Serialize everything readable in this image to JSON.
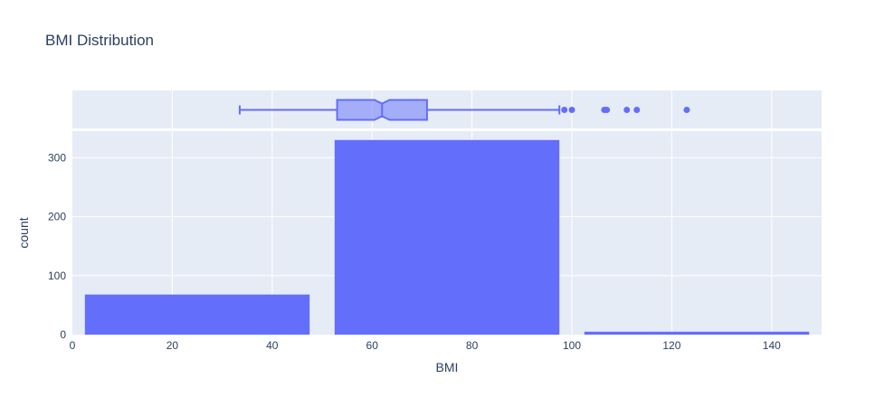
{
  "chart_data": {
    "type": "bar",
    "title": "BMI Distribution",
    "xlabel": "BMI",
    "ylabel": "count",
    "xlim": [
      0,
      150
    ],
    "ylim": [
      0,
      345
    ],
    "x_ticks": [
      0,
      20,
      40,
      60,
      80,
      100,
      120,
      140
    ],
    "y_ticks": [
      0,
      100,
      200,
      300
    ],
    "grid": true,
    "bar_color": "#636efa",
    "plot_bg": "#e5ecf6",
    "bins": [
      {
        "start": 0,
        "end": 50,
        "count": 68
      },
      {
        "start": 50,
        "end": 100,
        "count": 330
      },
      {
        "start": 100,
        "end": 150,
        "count": 5
      }
    ],
    "box": {
      "lower_fence": 33.5,
      "q1": 53,
      "median": 62,
      "q3": 71,
      "upper_fence": 97.5,
      "notch_low": 60.5,
      "notch_high": 63.5,
      "outliers": [
        98.5,
        100,
        106.5,
        107,
        111,
        113,
        123
      ]
    }
  }
}
